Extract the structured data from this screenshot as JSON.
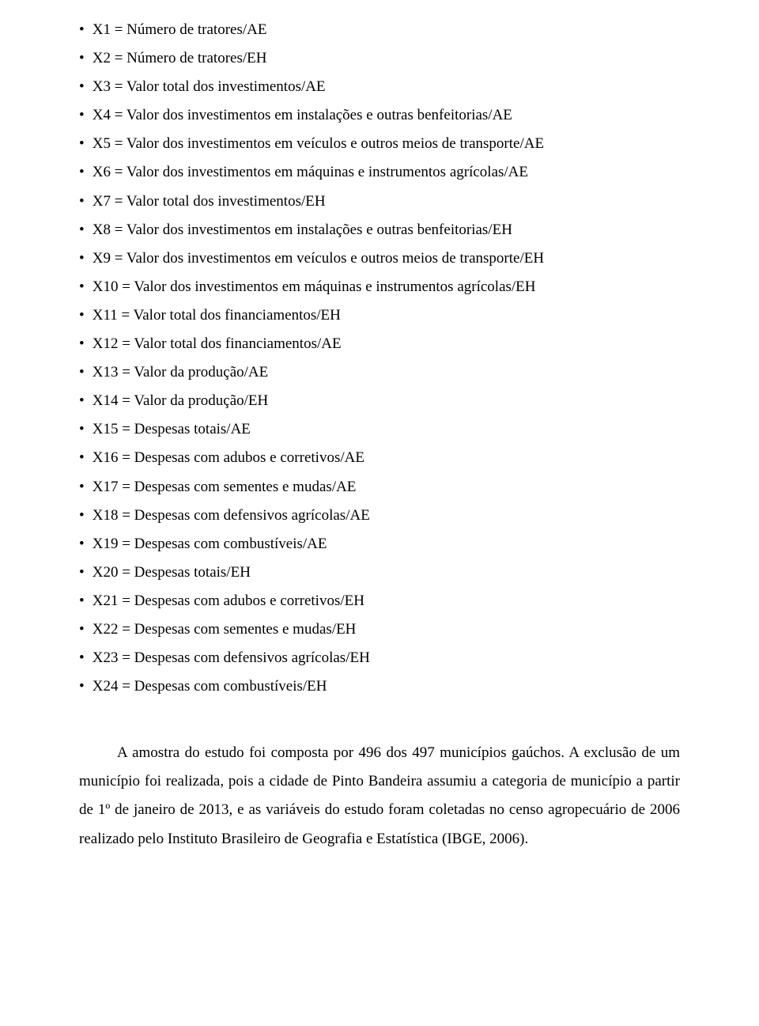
{
  "variables": [
    "X1 = Número de tratores/AE",
    "X2 = Número de tratores/EH",
    "X3 = Valor total dos investimentos/AE",
    "X4 = Valor dos investimentos em instalações e outras benfeitorias/AE",
    "X5 = Valor dos investimentos em veículos e outros meios de transporte/AE",
    "X6 = Valor dos investimentos em máquinas e instrumentos agrícolas/AE",
    "X7 = Valor total dos investimentos/EH",
    "X8 = Valor dos investimentos em instalações e outras benfeitorias/EH",
    "X9 = Valor dos investimentos em veículos e outros meios de transporte/EH",
    "X10 = Valor dos investimentos em máquinas e instrumentos agrícolas/EH",
    "X11 = Valor total dos financiamentos/EH",
    "X12 = Valor total dos financiamentos/AE",
    "X13 = Valor da produção/AE",
    "X14 = Valor da produção/EH",
    "X15 = Despesas totais/AE",
    "X16 = Despesas com adubos e corretivos/AE",
    "X17 = Despesas com sementes e mudas/AE",
    "X18 = Despesas com defensivos agrícolas/AE",
    "X19 = Despesas com combustíveis/AE",
    "X20 = Despesas totais/EH",
    "X21 = Despesas com adubos e corretivos/EH",
    "X22 = Despesas com sementes e mudas/EH",
    "X23 = Despesas com defensivos agrícolas/EH",
    "X24 = Despesas com combustíveis/EH"
  ],
  "paragraph": "A amostra do estudo foi composta por 496 dos 497 municípios gaúchos. A exclusão de um município foi realizada, pois a cidade de Pinto Bandeira assumiu a categoria de município a partir de 1º de janeiro de 2013, e as variáveis do estudo foram coletadas no censo agropecuário de 2006 realizado pelo Instituto Brasileiro de Geografia e Estatística (IBGE, 2006).",
  "bullet_char": "•"
}
